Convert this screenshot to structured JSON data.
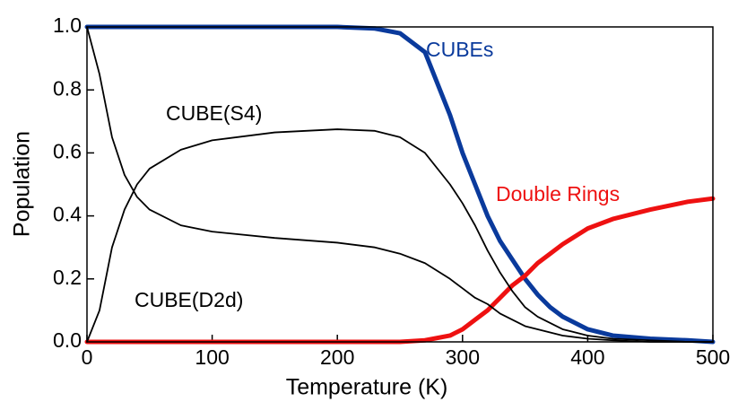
{
  "chart_data": {
    "type": "line",
    "xlabel": "Temperature (K)",
    "ylabel": "Population",
    "x": [
      0,
      10,
      20,
      30,
      40,
      50,
      75,
      100,
      150,
      200,
      230,
      250,
      270,
      290,
      300,
      310,
      320,
      330,
      340,
      350,
      360,
      370,
      380,
      400,
      420,
      450,
      480,
      500
    ],
    "series": [
      {
        "name": "CUBEs",
        "color": "#0a3a9c",
        "width": 5,
        "values": [
          1,
          1,
          1,
          1,
          1,
          1,
          1,
          1,
          1,
          1,
          0.995,
          0.98,
          0.92,
          0.72,
          0.6,
          0.5,
          0.4,
          0.32,
          0.26,
          0.2,
          0.15,
          0.11,
          0.08,
          0.04,
          0.02,
          0.01,
          0.005,
          0
        ]
      },
      {
        "name": "Double Rings",
        "color": "#ee1111",
        "width": 5,
        "values": [
          0,
          0,
          0,
          0,
          0,
          0,
          0,
          0,
          0,
          0,
          0,
          0,
          0.005,
          0.02,
          0.04,
          0.07,
          0.1,
          0.14,
          0.18,
          0.21,
          0.25,
          0.28,
          0.31,
          0.36,
          0.39,
          0.42,
          0.445,
          0.455
        ]
      },
      {
        "name": "CUBE(S4)",
        "color": "#000000",
        "width": 1.8,
        "values": [
          0,
          0.1,
          0.3,
          0.42,
          0.5,
          0.55,
          0.61,
          0.64,
          0.665,
          0.675,
          0.67,
          0.65,
          0.6,
          0.5,
          0.44,
          0.37,
          0.29,
          0.22,
          0.16,
          0.11,
          0.08,
          0.06,
          0.04,
          0.02,
          0.01,
          0.005,
          0,
          0
        ]
      },
      {
        "name": "CUBE(D2d)",
        "color": "#000000",
        "width": 1.8,
        "values": [
          1,
          0.85,
          0.65,
          0.53,
          0.46,
          0.42,
          0.37,
          0.35,
          0.33,
          0.315,
          0.3,
          0.28,
          0.25,
          0.2,
          0.17,
          0.14,
          0.12,
          0.09,
          0.07,
          0.05,
          0.04,
          0.03,
          0.02,
          0.01,
          0.005,
          0,
          0,
          0
        ]
      }
    ],
    "xlim": [
      0,
      500
    ],
    "xticks": [
      0,
      100,
      200,
      300,
      400,
      500
    ],
    "ylim": [
      0,
      1
    ],
    "yticks": [
      {
        "value": 0,
        "label": "0.0"
      },
      0.2,
      0.4,
      0.6,
      0.8,
      {
        "value": 1,
        "label": "1.0"
      }
    ]
  }
}
